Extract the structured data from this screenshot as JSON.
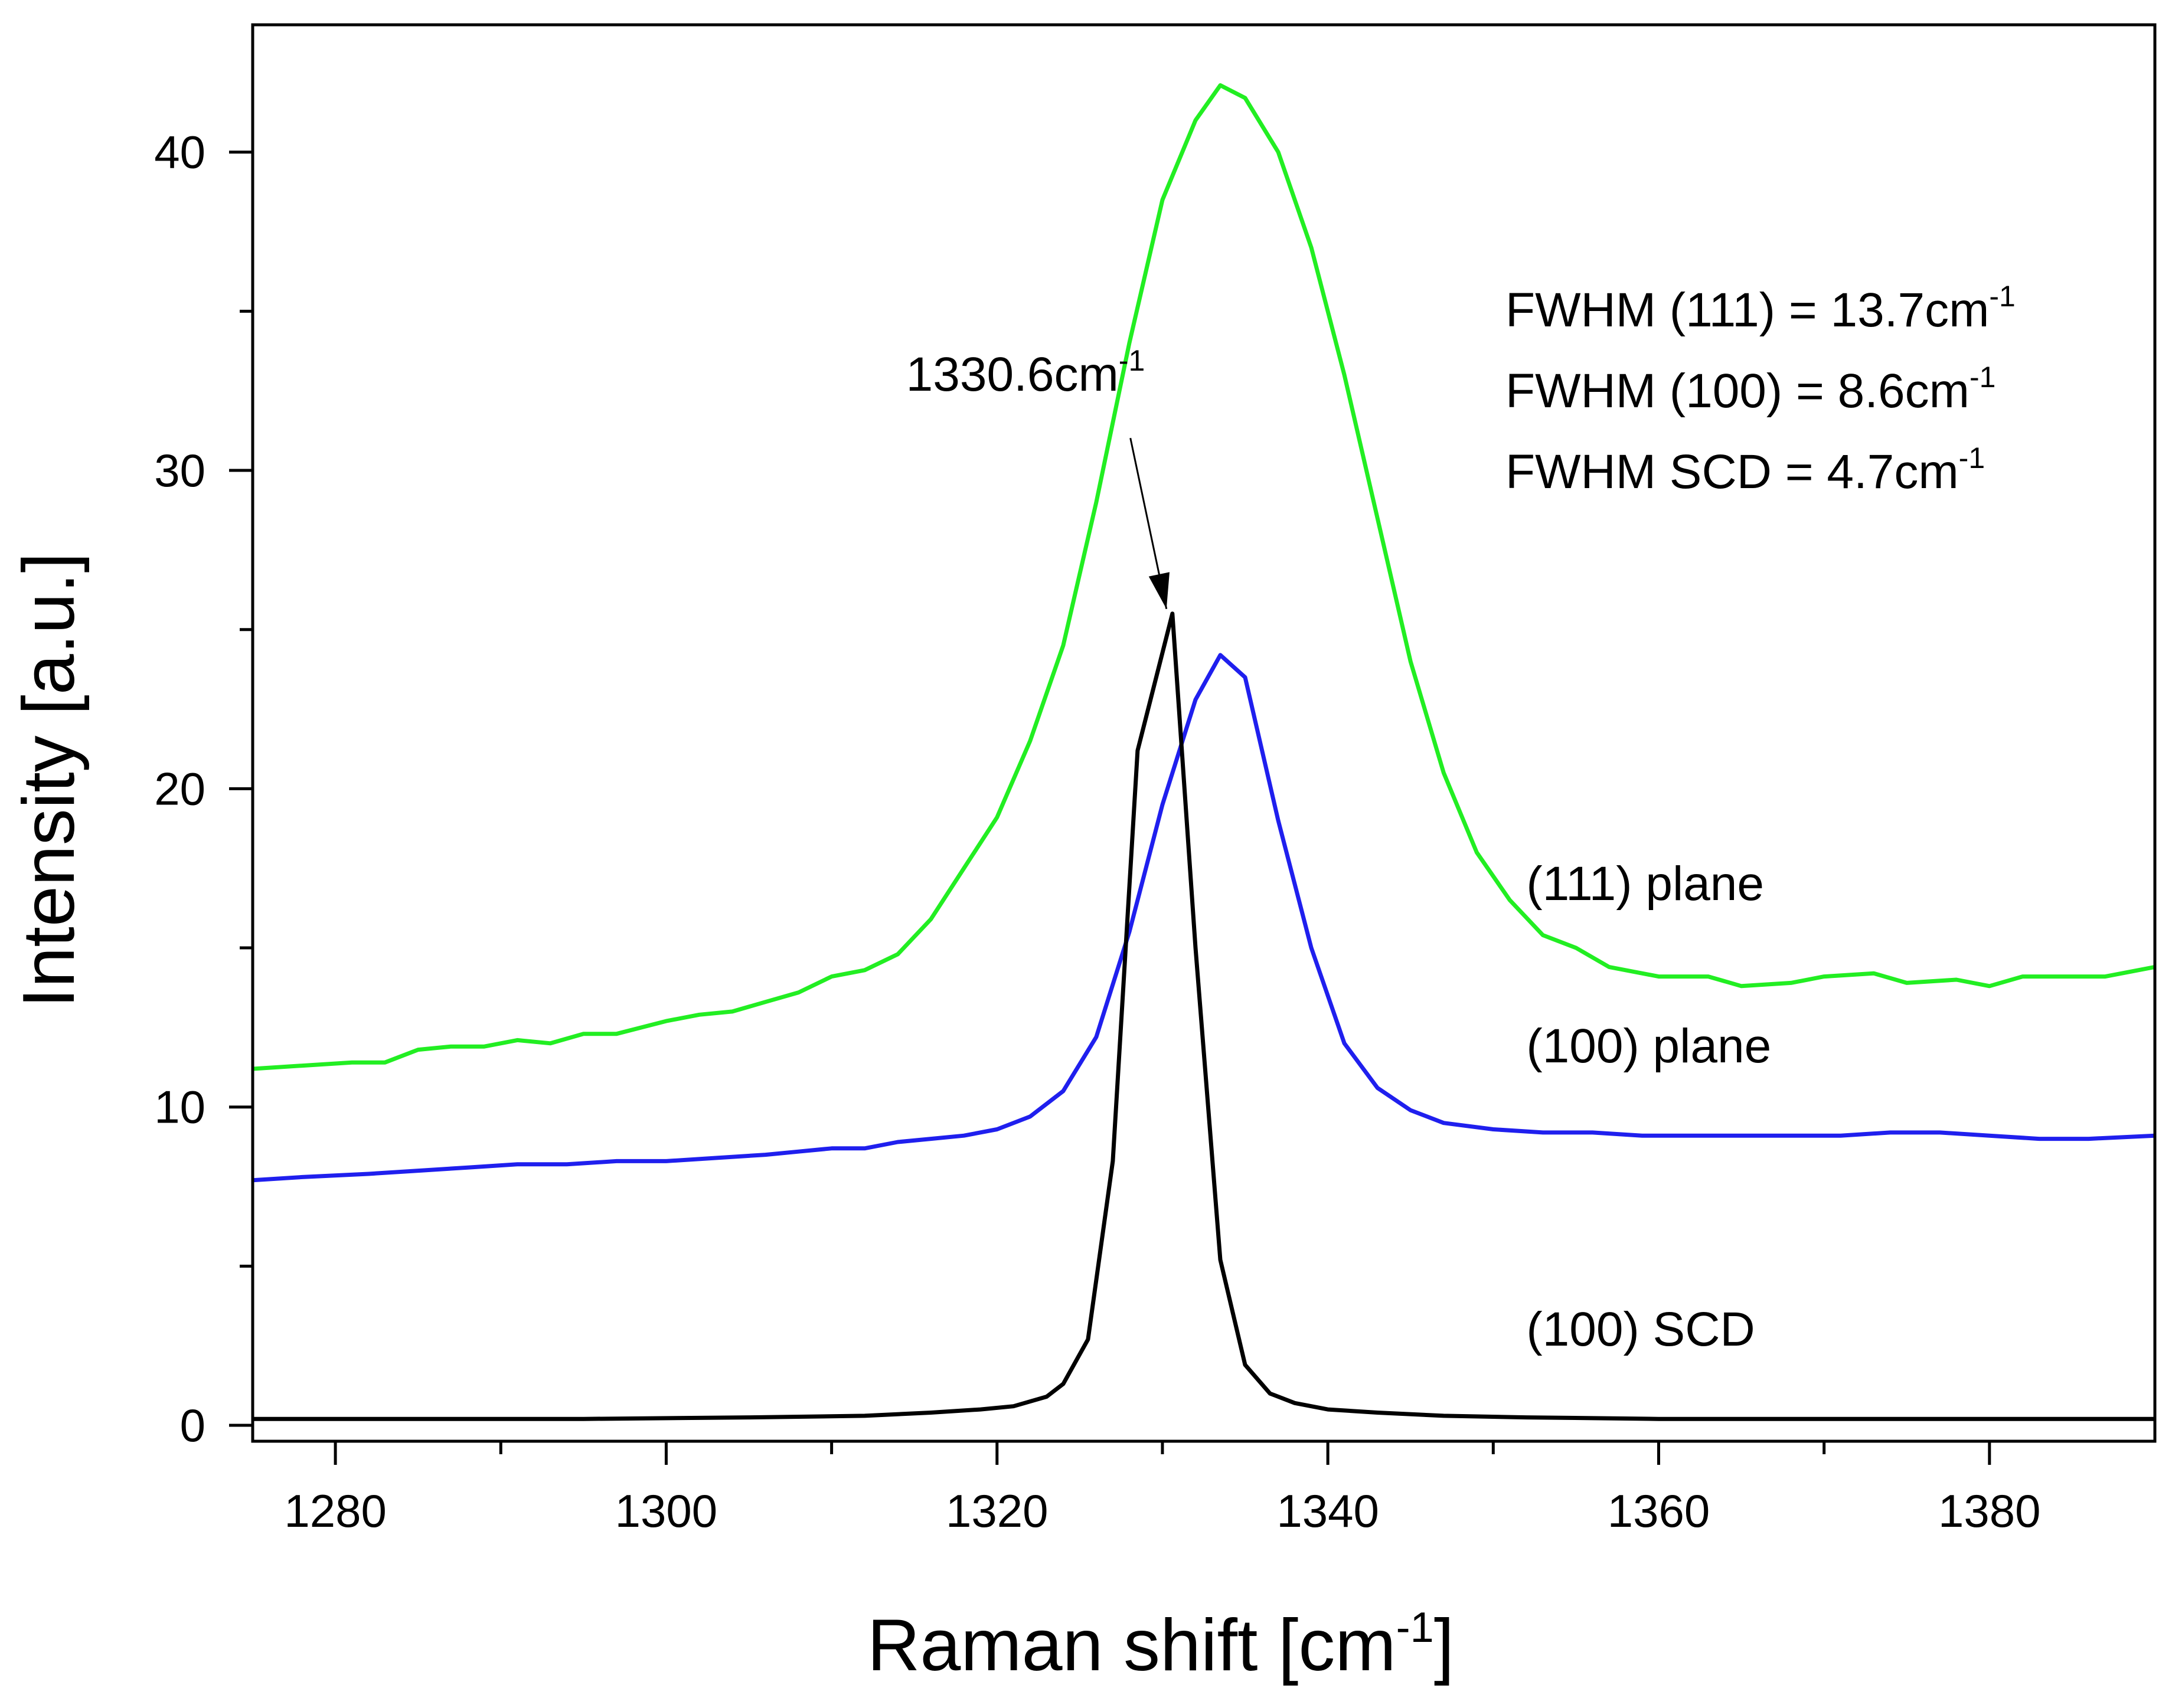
{
  "chart_data": {
    "type": "line",
    "xlabel": "Raman shift [cm",
    "xlabel_sup": "-1",
    "xlabel_end": "]",
    "ylabel": "Intensity [a.u.]",
    "xlim": [
      1275,
      1390
    ],
    "ylim": [
      -0.5,
      44
    ],
    "x_ticks": [
      1280,
      1300,
      1320,
      1340,
      1360,
      1380
    ],
    "x_minor_ticks": [
      1290,
      1310,
      1330,
      1350,
      1370
    ],
    "y_ticks": [
      0,
      10,
      20,
      30,
      40
    ],
    "y_minor_ticks": [
      5,
      15,
      25,
      35
    ],
    "grid": false,
    "series": [
      {
        "name": "(111) plane",
        "color": "#22ee22",
        "x": [
          1275,
          1278,
          1281,
          1283,
          1285,
          1287,
          1289,
          1291,
          1293,
          1295,
          1297,
          1300,
          1302,
          1304,
          1306,
          1308,
          1310,
          1312,
          1314,
          1316,
          1318,
          1320,
          1322,
          1324,
          1326,
          1328,
          1330,
          1332,
          1333.5,
          1335,
          1337,
          1339,
          1341,
          1343,
          1345,
          1347,
          1349,
          1351,
          1353,
          1355,
          1357,
          1360,
          1363,
          1365,
          1368,
          1370,
          1373,
          1375,
          1378,
          1380,
          1382,
          1385,
          1387,
          1390
        ],
        "y": [
          11.2,
          11.3,
          11.4,
          11.4,
          11.8,
          11.9,
          11.9,
          12.1,
          12.0,
          12.3,
          12.3,
          12.7,
          12.9,
          13.0,
          13.3,
          13.6,
          14.1,
          14.3,
          14.8,
          15.9,
          17.5,
          19.1,
          21.5,
          24.5,
          29.0,
          34.0,
          38.5,
          41.0,
          42.1,
          41.7,
          40.0,
          37.0,
          33.0,
          28.5,
          24.0,
          20.5,
          18.0,
          16.5,
          15.4,
          15.0,
          14.4,
          14.1,
          14.1,
          13.8,
          13.9,
          14.1,
          14.2,
          13.9,
          14.0,
          13.8,
          14.1,
          14.1,
          14.1,
          14.4
        ]
      },
      {
        "name": "(100) plane",
        "color": "#1f1fee",
        "x": [
          1275,
          1278,
          1282,
          1285,
          1288,
          1291,
          1294,
          1297,
          1300,
          1303,
          1306,
          1308,
          1310,
          1312,
          1314,
          1316,
          1318,
          1320,
          1322,
          1324,
          1326,
          1328,
          1330,
          1332,
          1333.5,
          1335,
          1337,
          1339,
          1341,
          1343,
          1345,
          1347,
          1350,
          1353,
          1356,
          1359,
          1362,
          1365,
          1368,
          1371,
          1374,
          1377,
          1380,
          1383,
          1386,
          1390
        ],
        "y": [
          7.7,
          7.8,
          7.9,
          8.0,
          8.1,
          8.2,
          8.2,
          8.3,
          8.3,
          8.4,
          8.5,
          8.6,
          8.7,
          8.7,
          8.9,
          9.0,
          9.1,
          9.3,
          9.7,
          10.5,
          12.2,
          15.5,
          19.5,
          22.8,
          24.2,
          23.5,
          19.0,
          15.0,
          12.0,
          10.6,
          9.9,
          9.5,
          9.3,
          9.2,
          9.2,
          9.1,
          9.1,
          9.1,
          9.1,
          9.1,
          9.2,
          9.2,
          9.1,
          9.0,
          9.0,
          9.1
        ]
      },
      {
        "name": "(100) SCD",
        "color": "#000000",
        "x": [
          1275,
          1285,
          1295,
          1305,
          1312,
          1316,
          1319,
          1321,
          1323,
          1324,
          1325.5,
          1327,
          1328.5,
          1330.6,
          1332,
          1333.5,
          1335,
          1336.5,
          1338,
          1340,
          1343,
          1347,
          1352,
          1360,
          1370,
          1380,
          1390
        ],
        "y": [
          0.2,
          0.2,
          0.2,
          0.25,
          0.3,
          0.4,
          0.5,
          0.6,
          0.9,
          1.3,
          2.7,
          8.3,
          21.2,
          25.5,
          15.0,
          5.2,
          1.9,
          1.0,
          0.7,
          0.5,
          0.4,
          0.3,
          0.25,
          0.2,
          0.2,
          0.2,
          0.2
        ]
      }
    ],
    "series_labels": [
      {
        "text": "(111) plane",
        "x": 1352,
        "y": 16.5
      },
      {
        "text": "(100) plane",
        "x": 1352,
        "y": 11.4
      },
      {
        "text": "(100) SCD",
        "x": 1352,
        "y": 2.5
      }
    ],
    "peak_annotation": {
      "text": "1330.6cm",
      "sup": "-1",
      "x": 1330.6,
      "y": 25.5,
      "label_x": 1314.5,
      "label_y": 32.5
    },
    "fwhm_annotations": [
      {
        "text": "FWHM (111) = 13.7cm",
        "sup": "-1"
      },
      {
        "text": "FWHM (100) = 8.6cm",
        "sup": "-1"
      },
      {
        "text": "FWHM SCD = 4.7cm",
        "sup": "-1"
      }
    ]
  }
}
